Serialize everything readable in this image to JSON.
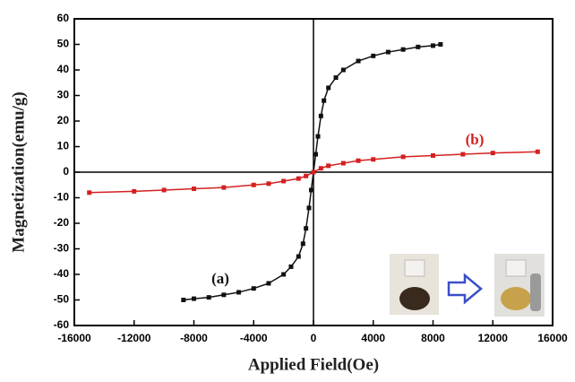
{
  "chart_data": {
    "type": "scatter",
    "xlabel": "Applied Field(Oe)",
    "ylabel": "Magnetization(emu/g)",
    "xlim": [
      -16000,
      16000
    ],
    "xticks": [
      -16000,
      -12000,
      -8000,
      -4000,
      0,
      4000,
      8000,
      12000,
      16000
    ],
    "ylim": [
      -60,
      60
    ],
    "yticks": [
      -60,
      -50,
      -40,
      -30,
      -20,
      -10,
      0,
      10,
      20,
      30,
      40,
      50,
      60
    ],
    "series": [
      {
        "name": "(a)",
        "color": "#111111",
        "x": [
          -8700,
          -8000,
          -7000,
          -6000,
          -5000,
          -4000,
          -3000,
          -2000,
          -1500,
          -1000,
          -700,
          -500,
          -300,
          -150,
          0,
          150,
          300,
          500,
          700,
          1000,
          1500,
          2000,
          3000,
          4000,
          5000,
          6000,
          7000,
          8000,
          8500
        ],
        "values": [
          -50,
          -49.5,
          -49,
          -48,
          -47,
          -45.5,
          -43.5,
          -40,
          -37,
          -33,
          -28,
          -22,
          -14,
          -7,
          0,
          7,
          14,
          22,
          28,
          33,
          37,
          40,
          43.5,
          45.5,
          47,
          48,
          49,
          49.5,
          50
        ]
      },
      {
        "name": "(b)",
        "color": "#d42020",
        "x": [
          -15000,
          -12000,
          -10000,
          -8000,
          -6000,
          -4000,
          -3000,
          -2000,
          -1000,
          -500,
          0,
          500,
          1000,
          2000,
          3000,
          4000,
          6000,
          8000,
          10000,
          12000,
          15000
        ],
        "values": [
          -8,
          -7.5,
          -7,
          -6.5,
          -6,
          -5,
          -4.5,
          -3.5,
          -2.5,
          -1.5,
          0,
          1.5,
          2.5,
          3.5,
          4.5,
          5,
          6,
          6.5,
          7,
          7.5,
          8
        ]
      }
    ]
  }
}
